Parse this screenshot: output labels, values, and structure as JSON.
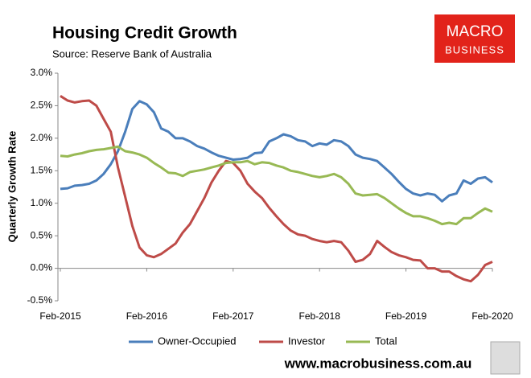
{
  "chart_data": {
    "type": "line",
    "title": "Housing Credit Growth",
    "subtitle": "Source: Reserve Bank of Australia",
    "y_label": "Quarterly Growth Rate",
    "logo": [
      "MACRO",
      "BUSINESS"
    ],
    "footer": "www.macrobusiness.com.au",
    "categories": [
      "Feb-2015",
      null,
      null,
      null,
      null,
      null,
      null,
      null,
      null,
      null,
      null,
      null,
      "Feb-2016",
      null,
      null,
      null,
      null,
      null,
      null,
      null,
      null,
      null,
      null,
      null,
      "Feb-2017",
      null,
      null,
      null,
      null,
      null,
      null,
      null,
      null,
      null,
      null,
      null,
      "Feb-2018",
      null,
      null,
      null,
      null,
      null,
      null,
      null,
      null,
      null,
      null,
      null,
      "Feb-2019",
      null,
      null,
      null,
      null,
      null,
      null,
      null,
      null,
      null,
      null,
      null,
      "Feb-2020"
    ],
    "series": [
      {
        "name": "Owner-Occupied",
        "color": "#4a7ebb",
        "values": [
          1.22,
          1.23,
          1.27,
          1.28,
          1.3,
          1.35,
          1.45,
          1.6,
          1.8,
          2.1,
          2.45,
          2.57,
          2.52,
          2.4,
          2.15,
          2.1,
          2.0,
          2.0,
          1.95,
          1.88,
          1.84,
          1.78,
          1.73,
          1.7,
          1.67,
          1.68,
          1.7,
          1.77,
          1.78,
          1.95,
          2.0,
          2.06,
          2.03,
          1.97,
          1.95,
          1.88,
          1.92,
          1.9,
          1.97,
          1.95,
          1.88,
          1.75,
          1.7,
          1.68,
          1.65,
          1.55,
          1.45,
          1.33,
          1.22,
          1.15,
          1.12,
          1.15,
          1.13,
          1.03,
          1.12,
          1.15,
          1.35,
          1.3,
          1.38,
          1.4,
          1.32
        ]
      },
      {
        "name": "Investor",
        "color": "#be4b48",
        "values": [
          2.65,
          2.58,
          2.55,
          2.57,
          2.58,
          2.5,
          2.3,
          2.1,
          1.55,
          1.1,
          0.65,
          0.32,
          0.2,
          0.17,
          0.22,
          0.3,
          0.38,
          0.55,
          0.68,
          0.88,
          1.08,
          1.32,
          1.5,
          1.65,
          1.62,
          1.5,
          1.3,
          1.18,
          1.08,
          0.93,
          0.8,
          0.68,
          0.58,
          0.52,
          0.5,
          0.45,
          0.42,
          0.4,
          0.42,
          0.4,
          0.27,
          0.1,
          0.13,
          0.22,
          0.42,
          0.33,
          0.25,
          0.2,
          0.17,
          0.13,
          0.12,
          0.0,
          0.0,
          -0.05,
          -0.05,
          -0.12,
          -0.17,
          -0.2,
          -0.1,
          0.05,
          0.1
        ]
      },
      {
        "name": "Total",
        "color": "#98b954",
        "values": [
          1.73,
          1.72,
          1.75,
          1.77,
          1.8,
          1.82,
          1.83,
          1.85,
          1.87,
          1.8,
          1.78,
          1.75,
          1.7,
          1.62,
          1.55,
          1.47,
          1.46,
          1.42,
          1.48,
          1.5,
          1.52,
          1.55,
          1.58,
          1.62,
          1.63,
          1.63,
          1.65,
          1.6,
          1.63,
          1.62,
          1.58,
          1.55,
          1.5,
          1.48,
          1.45,
          1.42,
          1.4,
          1.42,
          1.45,
          1.4,
          1.3,
          1.15,
          1.12,
          1.13,
          1.14,
          1.08,
          1.0,
          0.92,
          0.85,
          0.8,
          0.8,
          0.77,
          0.73,
          0.68,
          0.7,
          0.68,
          0.77,
          0.77,
          0.85,
          0.92,
          0.87
        ]
      }
    ],
    "ylim": [
      -0.5,
      3.0
    ],
    "yticks": [
      {
        "value": -0.5,
        "label": "-0.5%"
      },
      {
        "value": 0,
        "label": "0.0%"
      },
      {
        "value": 0.5,
        "label": "0.5%"
      },
      {
        "value": 1.0,
        "label": "1.0%"
      },
      {
        "value": 1.5,
        "label": "1.5%"
      },
      {
        "value": 2.0,
        "label": "2.0%"
      },
      {
        "value": 2.5,
        "label": "2.5%"
      },
      {
        "value": 3.0,
        "label": "3.0%"
      }
    ],
    "grid": false
  }
}
